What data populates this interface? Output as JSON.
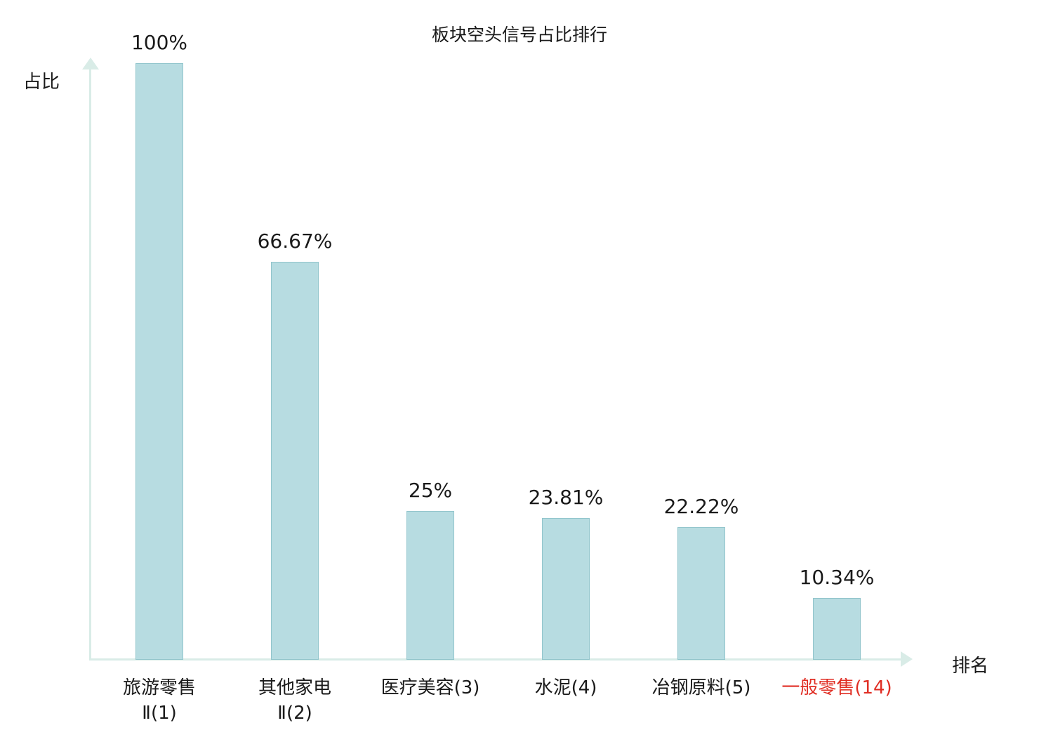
{
  "chart_data": {
    "type": "bar",
    "title": "板块空头信号占比排行",
    "ylabel": "占比",
    "xlabel": "排名",
    "ylim": [
      0,
      100
    ],
    "grid": false,
    "legend": "none",
    "bar_color": "#b7dce1",
    "bar_border_color": "#92c5cc",
    "axis_color": "#d9ece7",
    "highlight_color": "#e02e24",
    "categories": [
      {
        "lines": [
          "旅游零售",
          "Ⅱ(1)"
        ],
        "highlight": false
      },
      {
        "lines": [
          "其他家电",
          "Ⅱ(2)"
        ],
        "highlight": false
      },
      {
        "lines": [
          "医疗美容(3)"
        ],
        "highlight": false
      },
      {
        "lines": [
          "水泥(4)"
        ],
        "highlight": false
      },
      {
        "lines": [
          "冶钢原料(5)"
        ],
        "highlight": false
      },
      {
        "lines": [
          "一般零售(14)"
        ],
        "highlight": true
      }
    ],
    "values": [
      100,
      66.67,
      25,
      23.81,
      22.22,
      10.34
    ],
    "value_labels": [
      "100%",
      "66.67%",
      "25%",
      "23.81%",
      "22.22%",
      "10.34%"
    ]
  }
}
